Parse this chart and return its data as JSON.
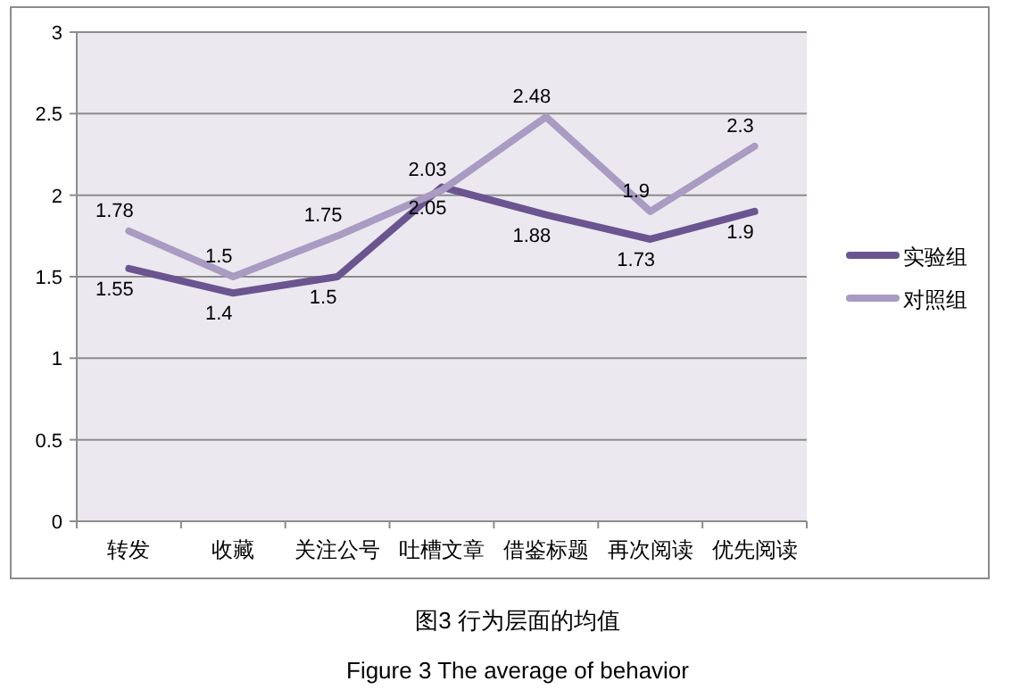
{
  "chart_data": {
    "type": "line",
    "categories": [
      "转发",
      "收藏",
      "关注公号",
      "吐槽文章",
      "借鉴标题",
      "再次阅读",
      "优先阅读"
    ],
    "series": [
      {
        "name": "实验组",
        "color": "#6a5590",
        "values": [
          1.55,
          1.4,
          1.5,
          2.05,
          1.88,
          1.73,
          1.9
        ]
      },
      {
        "name": "对照组",
        "color": "#a99bc2",
        "values": [
          1.78,
          1.5,
          1.75,
          2.03,
          2.48,
          1.9,
          2.3
        ]
      }
    ],
    "ylim": [
      0,
      3
    ],
    "yticks": [
      0,
      0.5,
      1,
      1.5,
      2,
      2.5,
      3
    ],
    "grid": "y",
    "legend": "right",
    "data_labels": true,
    "annotations": [
      "图3 行为层面的均值",
      "Figure 3 The average of behavior"
    ]
  }
}
